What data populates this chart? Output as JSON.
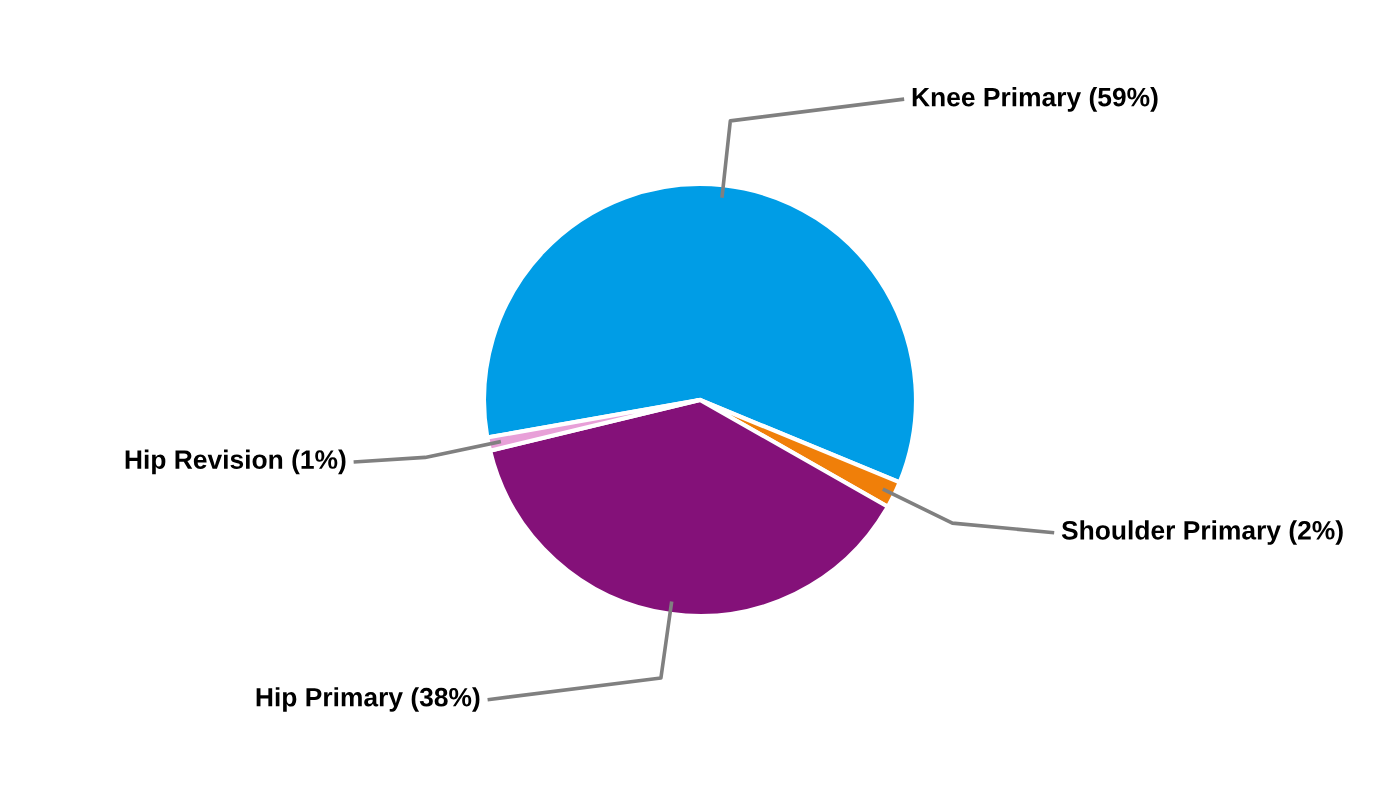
{
  "chart_data": {
    "type": "pie",
    "categories": [
      "Knee Primary (59%)",
      "Shoulder Primary (2%)",
      "Hip Primary (38%)",
      "Hip Revision (1%)"
    ],
    "values": [
      59,
      2,
      38,
      1
    ],
    "colors": [
      "#009de6",
      "#f07f09",
      "#841179",
      "#e8a0d8"
    ],
    "legend": false
  }
}
